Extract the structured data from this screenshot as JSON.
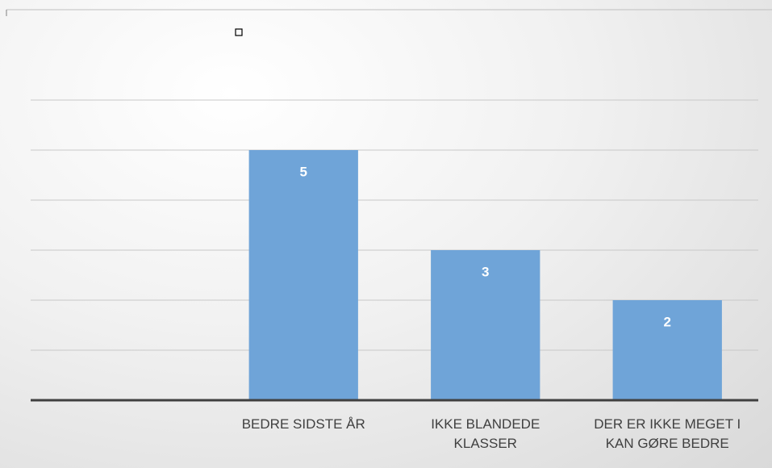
{
  "chart_data": {
    "type": "bar",
    "categories": [
      null,
      "BEDRE SIDSTE ÅR",
      "IKKE BLANDEDE KLASSER",
      "DER ER IKKE MEGET I KAN GØRE BEDRE"
    ],
    "values": [
      null,
      5,
      3,
      2
    ],
    "color": "#6fa4d8",
    "ylim": [
      0,
      6
    ],
    "yticks": [
      0,
      1,
      2,
      3,
      4,
      5,
      6
    ],
    "grid": true
  }
}
